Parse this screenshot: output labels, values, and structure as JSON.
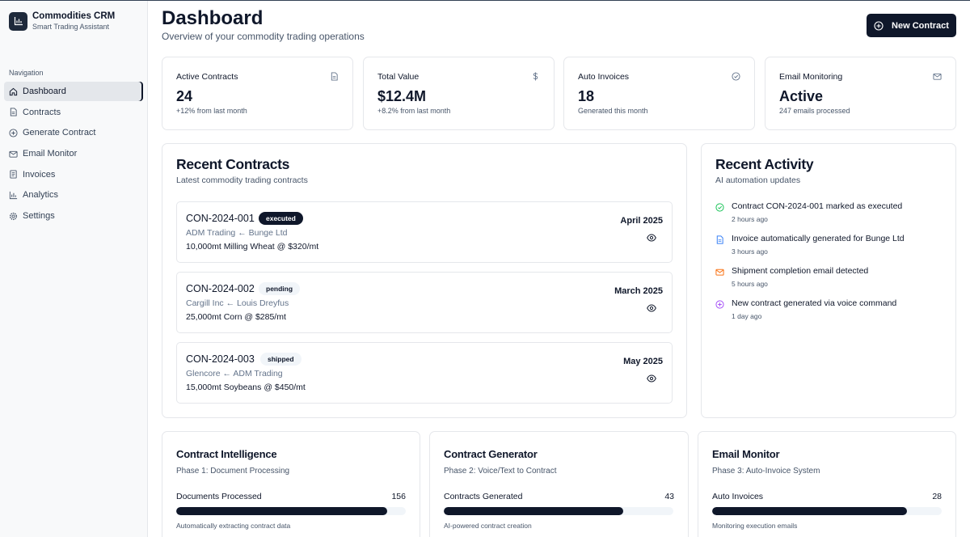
{
  "app": {
    "name": "Commodities CRM",
    "tagline": "Smart Trading Assistant",
    "logo_icon": "bar-chart-icon"
  },
  "sidebar": {
    "heading": "Navigation",
    "items": [
      {
        "label": "Dashboard",
        "icon": "home-icon",
        "active": true
      },
      {
        "label": "Contracts",
        "icon": "file-icon"
      },
      {
        "label": "Generate Contract",
        "icon": "plus-circle-icon"
      },
      {
        "label": "Email Monitor",
        "icon": "mail-icon"
      },
      {
        "label": "Invoices",
        "icon": "receipt-icon"
      },
      {
        "label": "Analytics",
        "icon": "bar-chart-icon"
      },
      {
        "label": "Settings",
        "icon": "gear-icon"
      }
    ]
  },
  "header": {
    "title": "Dashboard",
    "subtitle": "Overview of your commodity trading operations",
    "new_button": "New Contract"
  },
  "stats": [
    {
      "label": "Active Contracts",
      "value": "24",
      "note": "+12% from last month",
      "icon": "file-icon"
    },
    {
      "label": "Total Value",
      "value": "$12.4M",
      "note": "+8.2% from last month",
      "icon": "dollar-icon"
    },
    {
      "label": "Auto Invoices",
      "value": "18",
      "note": "Generated this month",
      "icon": "check-circle-icon"
    },
    {
      "label": "Email Monitoring",
      "value": "Active",
      "note": "247 emails processed",
      "icon": "mail-icon"
    }
  ],
  "recent_contracts": {
    "title": "Recent Contracts",
    "subtitle": "Latest commodity trading contracts",
    "items": [
      {
        "id": "CON-2024-001",
        "status": "executed",
        "parties": "ADM Trading ← Bunge Ltd",
        "description": "10,000mt Milling Wheat @ $320/mt",
        "date": "April 2025"
      },
      {
        "id": "CON-2024-002",
        "status": "pending",
        "parties": "Cargill Inc ← Louis Dreyfus",
        "description": "25,000mt Corn @ $285/mt",
        "date": "March 2025"
      },
      {
        "id": "CON-2024-003",
        "status": "shipped",
        "parties": "Glencore ← ADM Trading",
        "description": "15,000mt Soybeans @ $450/mt",
        "date": "May 2025"
      }
    ]
  },
  "recent_activity": {
    "title": "Recent Activity",
    "subtitle": "AI automation updates",
    "items": [
      {
        "text": "Contract CON-2024-001 marked as executed",
        "time": "2 hours ago",
        "icon": "check-circle-icon",
        "color": "#22c55e"
      },
      {
        "text": "Invoice automatically generated for Bunge Ltd",
        "time": "3 hours ago",
        "icon": "file-icon",
        "color": "#3b82f6"
      },
      {
        "text": "Shipment completion email detected",
        "time": "5 hours ago",
        "icon": "mail-icon",
        "color": "#f97316"
      },
      {
        "text": "New contract generated via voice command",
        "time": "1 day ago",
        "icon": "plus-circle-icon",
        "color": "#a855f7"
      }
    ]
  },
  "phases": [
    {
      "title": "Contract Intelligence",
      "subtitle": "Phase 1: Document Processing",
      "metric_label": "Documents Processed",
      "metric_value": "156",
      "progress": 0.92,
      "note": "Automatically extracting contract data"
    },
    {
      "title": "Contract Generator",
      "subtitle": "Phase 2: Voice/Text to Contract",
      "metric_label": "Contracts Generated",
      "metric_value": "43",
      "progress": 0.78,
      "note": "AI-powered contract creation"
    },
    {
      "title": "Email Monitor",
      "subtitle": "Phase 3: Auto-Invoice System",
      "metric_label": "Auto Invoices",
      "metric_value": "28",
      "progress": 0.85,
      "note": "Monitoring execution emails"
    }
  ],
  "colors": {
    "primary": "#0f172a",
    "muted": "#475569",
    "border": "#e5e7eb",
    "sidebar_bg": "#f8f9fa"
  }
}
